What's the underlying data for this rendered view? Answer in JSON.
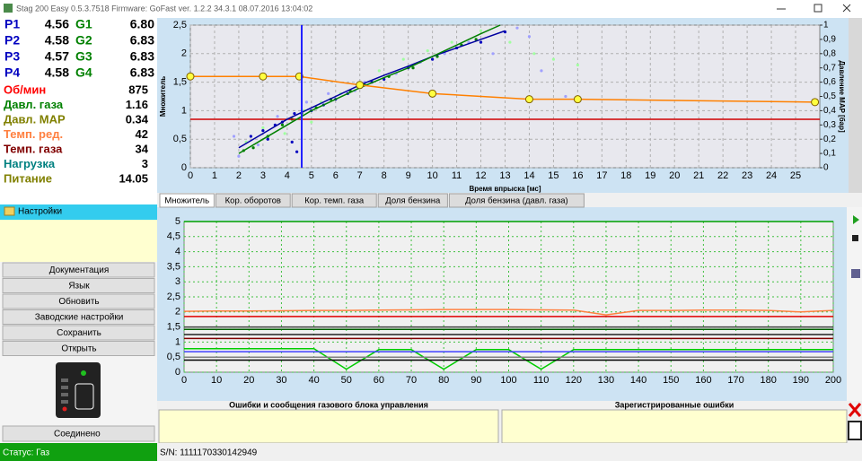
{
  "window": {
    "title": "Stag 200 Easy 0.5.3.7518 Firmware: GoFast  ver. 1.2.2  34.3.1  08.07.2016 13:04:02"
  },
  "injectors": [
    {
      "p": "P1",
      "p_value": "4.56",
      "g": "G1",
      "g_value": "6.80"
    },
    {
      "p": "P2",
      "p_value": "4.58",
      "g": "G2",
      "g_value": "6.83"
    },
    {
      "p": "P3",
      "p_value": "4.57",
      "g": "G3",
      "g_value": "6.83"
    },
    {
      "p": "P4",
      "p_value": "4.58",
      "g": "G4",
      "g_value": "6.83"
    }
  ],
  "parameters": [
    {
      "name": "Об/мин",
      "value": "875",
      "color": "#ff0000"
    },
    {
      "name": "Давл. газа",
      "value": "1.16",
      "color": "#008000"
    },
    {
      "name": "Давл. MAP",
      "value": "0.34",
      "color": "#808000"
    },
    {
      "name": "Темп. ред.",
      "value": "42",
      "color": "#ff8040"
    },
    {
      "name": "Темп. газа",
      "value": "34",
      "color": "#800000"
    },
    {
      "name": "Нагрузка",
      "value": "3",
      "color": "#008080"
    },
    {
      "name": "Питание",
      "value": "14.05",
      "color": "#808000"
    }
  ],
  "settings_header": "Настройки",
  "buttons": [
    "Документация",
    "Язык",
    "Обновить",
    "Заводские настройки",
    "Сохранить",
    "Открыть"
  ],
  "connection": "Соединено",
  "tabs": [
    "Множитель",
    "Кор. оборотов",
    "Кор. темп. газа",
    "Доля бензина",
    "Доля бензина (давл. газа)"
  ],
  "errors_panel": {
    "left": "Ошибки и сообщения газового блока управления",
    "right": "Зарегистрированные ошибки"
  },
  "status": {
    "state": "Статус: Газ",
    "serial": "S/N: 1111170330142949"
  },
  "chart_data": [
    {
      "type": "line",
      "xlabel": "Время впрыска [мс]",
      "ylabel": "Множитель",
      "y2label": "Давление MAP [бар]",
      "xlim": [
        0,
        26
      ],
      "ylim": [
        0,
        2.5
      ],
      "y2lim": [
        0,
        1
      ],
      "xticks": [
        0,
        1,
        2,
        3,
        4,
        5,
        6,
        7,
        8,
        9,
        10,
        11,
        12,
        13,
        14,
        15,
        16,
        17,
        18,
        19,
        20,
        21,
        22,
        23,
        24,
        25
      ],
      "yticks": [
        0,
        {
          "value": 0.5,
          "label": "0,5"
        },
        1,
        {
          "value": 1.5,
          "label": "1,5"
        },
        2,
        {
          "value": 2.5,
          "label": "2,5"
        }
      ],
      "y2ticks": [
        0,
        {
          "value": 0.1,
          "label": "0,1"
        },
        {
          "value": 0.2,
          "label": "0,2"
        },
        {
          "value": 0.3,
          "label": "0,3"
        },
        {
          "value": 0.4,
          "label": "0,4"
        },
        {
          "value": 0.5,
          "label": "0,5"
        },
        {
          "value": 0.6,
          "label": "0,6"
        },
        {
          "value": 0.7,
          "label": "0,7"
        },
        {
          "value": 0.8,
          "label": "0,8"
        },
        {
          "value": 0.9,
          "label": "0,9"
        },
        1
      ],
      "grid": true,
      "grid_color": "#b0b0b0",
      "grid_dash": "3,3",
      "background": "#e8e8ee",
      "cursor_x": 4.6,
      "cursor_color": "#2020ff",
      "series": [
        {
          "mode": "markers",
          "color": "#a0a0ff",
          "x": [
            2,
            2.8,
            3.6,
            4.8,
            5.7,
            6.8,
            7.2,
            8.5,
            9.5,
            10.5,
            11.5,
            12.5,
            14,
            14.5,
            13.5,
            15.5,
            1.8
          ],
          "values": [
            0.2,
            0.4,
            0.9,
            1.15,
            1.3,
            1.35,
            1.5,
            1.65,
            1.85,
            2.0,
            2.2,
            2.0,
            2.3,
            1.7,
            2.45,
            1.25,
            0.55
          ]
        },
        {
          "mode": "markers",
          "color": "#a0ffa0",
          "x": [
            2.3,
            3,
            3.9,
            4.7,
            5.4,
            6.2,
            7,
            7.8,
            8.8,
            9.8,
            10.8,
            12,
            13.2,
            14.2,
            15,
            16,
            5
          ],
          "values": [
            0.45,
            0.7,
            0.6,
            1.0,
            1.15,
            1.3,
            1.5,
            1.7,
            1.9,
            2.05,
            2.2,
            2.4,
            2.2,
            2.0,
            1.9,
            1.8,
            0.8
          ]
        },
        {
          "mode": "markers",
          "color": "#0000c0",
          "x": [
            2.5,
            3,
            3.5,
            3.8,
            4.2,
            4.4,
            5,
            5.5,
            6,
            6.5,
            7.5,
            8,
            9,
            10,
            11,
            12,
            13,
            4.3,
            3.2
          ],
          "values": [
            0.55,
            0.65,
            0.75,
            0.8,
            0.45,
            0.28,
            1.0,
            1.1,
            1.2,
            1.3,
            1.5,
            1.55,
            1.75,
            1.9,
            2.1,
            2.2,
            2.38,
            0.95,
            0.5
          ]
        },
        {
          "mode": "markers",
          "color": "#008000",
          "x": [
            2.2,
            2.6,
            3.2,
            3.8,
            4.2,
            4.6,
            5.2,
            5.8,
            6.6,
            7.2,
            8.2,
            9.2,
            10.2,
            11.2,
            11.8
          ],
          "values": [
            0.3,
            0.35,
            0.55,
            0.75,
            0.85,
            0.95,
            1.05,
            1.2,
            1.35,
            1.45,
            1.6,
            1.75,
            1.95,
            2.15,
            2.25
          ]
        },
        {
          "mode": "line",
          "color": "#d00000",
          "x": [
            0,
            26
          ],
          "values": [
            0.85,
            0.85
          ]
        },
        {
          "mode": "line",
          "color": "#0000a0",
          "x": [
            2,
            3,
            4,
            5,
            6,
            7,
            8,
            9,
            10,
            11,
            12,
            13
          ],
          "values": [
            0.35,
            0.6,
            0.85,
            1.05,
            1.25,
            1.45,
            1.62,
            1.78,
            1.95,
            2.1,
            2.25,
            2.4
          ]
        },
        {
          "mode": "line",
          "color": "#008000",
          "x": [
            2,
            3,
            4,
            5,
            6,
            7,
            8,
            9,
            10,
            11,
            12,
            12.8
          ],
          "values": [
            0.25,
            0.5,
            0.75,
            1.0,
            1.2,
            1.4,
            1.58,
            1.75,
            1.95,
            2.15,
            2.35,
            2.5
          ]
        },
        {
          "mode": "line",
          "color": "#ff8000",
          "marker_color": "#ffff40",
          "x": [
            0,
            3,
            4.5,
            7,
            10,
            14,
            16,
            25.8
          ],
          "values": [
            1.6,
            1.6,
            1.6,
            1.45,
            1.3,
            1.2,
            1.2,
            1.15
          ]
        }
      ]
    },
    {
      "type": "line",
      "xlim": [
        0,
        200
      ],
      "ylim": [
        0,
        5
      ],
      "xticks": [
        0,
        10,
        20,
        30,
        40,
        50,
        60,
        70,
        80,
        90,
        100,
        110,
        120,
        130,
        140,
        150,
        160,
        170,
        180,
        190,
        200
      ],
      "yticks": [
        0,
        {
          "value": 0.5,
          "label": "0,5"
        },
        1,
        {
          "value": 1.5,
          "label": "1,5"
        },
        2,
        {
          "value": 2.5,
          "label": "2,5"
        },
        3,
        {
          "value": 3.5,
          "label": "3,5"
        },
        4,
        {
          "value": 4.5,
          "label": "4,5"
        },
        5
      ],
      "grid": true,
      "grid_color": "#40c040",
      "grid_dash": "2,3",
      "background": "#f0f0f0",
      "x": [
        0,
        10,
        20,
        30,
        40,
        50,
        60,
        70,
        80,
        90,
        100,
        110,
        120,
        130,
        140,
        150,
        160,
        170,
        180,
        190,
        200
      ],
      "series": [
        {
          "mode": "line",
          "color": "#00a000",
          "values": [
            5,
            5,
            5,
            5,
            5,
            5,
            5,
            5,
            5,
            5,
            5,
            5,
            5,
            5,
            5,
            5,
            5,
            5,
            5,
            5,
            5
          ]
        },
        {
          "mode": "line",
          "color": "#ff8040",
          "values": [
            2.02,
            2.03,
            2.03,
            2.04,
            2.05,
            2.05,
            2.06,
            2.07,
            2.08,
            2.08,
            2.08,
            2.07,
            2.06,
            1.9,
            2.05,
            2.05,
            2.06,
            2.06,
            2.05,
            2.0,
            2.05
          ]
        },
        {
          "mode": "line",
          "color": "#e00000",
          "values": [
            1.85,
            1.85,
            1.85,
            1.85,
            1.85,
            1.85,
            1.85,
            1.85,
            1.85,
            1.85,
            1.85,
            1.85,
            1.85,
            1.85,
            1.85,
            1.85,
            1.85,
            1.85,
            1.85,
            1.85,
            1.85
          ]
        },
        {
          "mode": "line",
          "color": "#404040",
          "values": [
            1.5,
            1.5,
            1.5,
            1.5,
            1.5,
            1.5,
            1.5,
            1.5,
            1.5,
            1.5,
            1.5,
            1.5,
            1.5,
            1.5,
            1.5,
            1.5,
            1.5,
            1.5,
            1.5,
            1.5,
            1.5
          ]
        },
        {
          "mode": "line",
          "color": "#006000",
          "values": [
            1.42,
            1.42,
            1.42,
            1.42,
            1.42,
            1.42,
            1.42,
            1.42,
            1.42,
            1.42,
            1.42,
            1.42,
            1.42,
            1.42,
            1.42,
            1.42,
            1.42,
            1.42,
            1.42,
            1.42,
            1.42
          ]
        },
        {
          "mode": "line",
          "color": "#202020",
          "values": [
            1.25,
            1.25,
            1.25,
            1.25,
            1.25,
            1.25,
            1.25,
            1.25,
            1.25,
            1.25,
            1.25,
            1.25,
            1.25,
            1.25,
            1.25,
            1.25,
            1.25,
            1.25,
            1.25,
            1.25,
            1.25
          ]
        },
        {
          "mode": "line",
          "color": "#800000",
          "values": [
            1.12,
            1.12,
            1.12,
            1.12,
            1.12,
            1.12,
            1.12,
            1.12,
            1.12,
            1.12,
            1.12,
            1.12,
            1.12,
            1.12,
            1.12,
            1.12,
            1.12,
            1.12,
            1.12,
            1.12,
            1.12
          ]
        },
        {
          "mode": "line",
          "color": "#00cc00",
          "values": [
            0.78,
            0.78,
            0.78,
            0.78,
            0.78,
            0.1,
            0.75,
            0.75,
            0.1,
            0.75,
            0.75,
            0.1,
            0.75,
            0.75,
            0.75,
            0.75,
            0.75,
            0.75,
            0.75,
            0.75,
            0.75
          ]
        },
        {
          "mode": "line",
          "color": "#4040ff",
          "values": [
            0.68,
            0.68,
            0.68,
            0.68,
            0.68,
            0.68,
            0.68,
            0.68,
            0.68,
            0.68,
            0.68,
            0.68,
            0.68,
            0.68,
            0.68,
            0.68,
            0.68,
            0.68,
            0.68,
            0.68,
            0.68
          ]
        },
        {
          "mode": "line",
          "color": "#808080",
          "values": [
            0.5,
            0.5,
            0.5,
            0.5,
            0.5,
            0.5,
            0.5,
            0.5,
            0.5,
            0.5,
            0.5,
            0.5,
            0.5,
            0.5,
            0.5,
            0.5,
            0.5,
            0.5,
            0.5,
            0.5,
            0.5
          ]
        },
        {
          "mode": "line",
          "color": "#000000",
          "values": [
            0.4,
            0.4,
            0.4,
            0.4,
            0.4,
            0.4,
            0.4,
            0.4,
            0.4,
            0.4,
            0.4,
            0.4,
            0.4,
            0.4,
            0.4,
            0.4,
            0.4,
            0.4,
            0.4,
            0.4,
            0.4
          ]
        }
      ]
    }
  ]
}
